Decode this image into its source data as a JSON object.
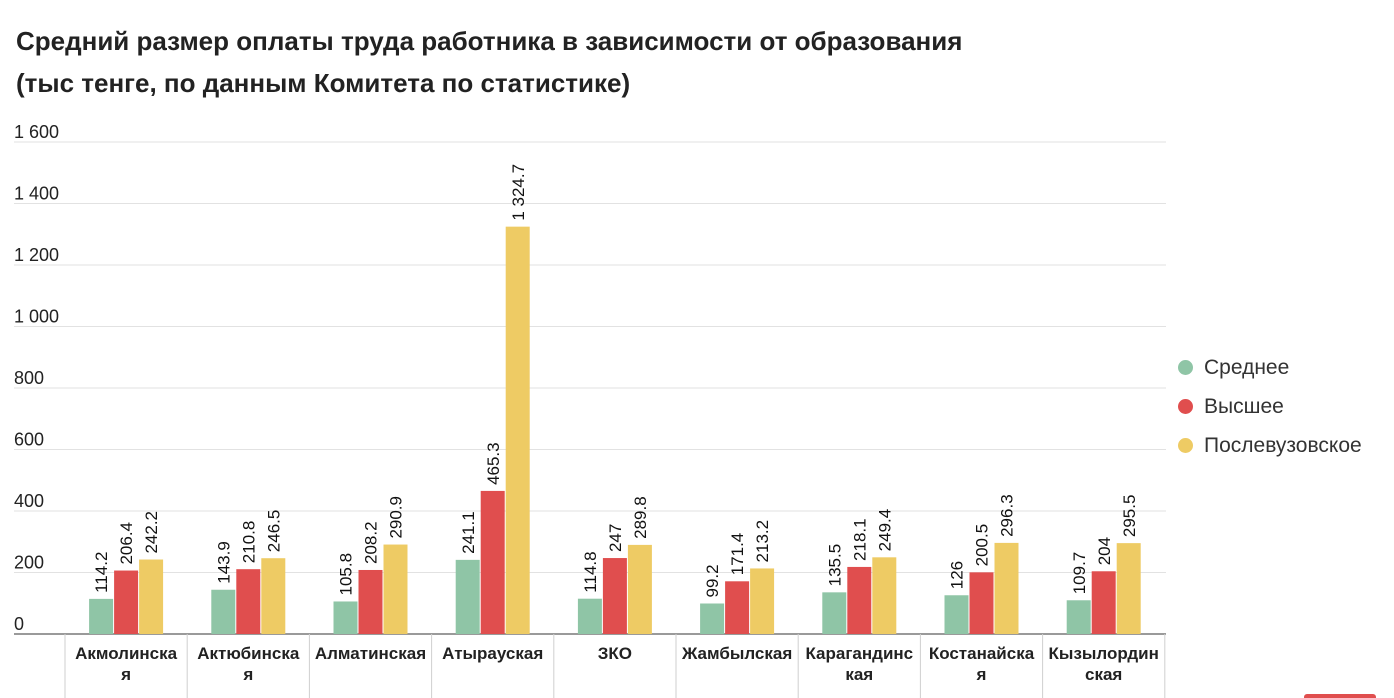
{
  "title": {
    "line1": "Средний размер оплаты труда работника в зависимости от образования",
    "line2": "(тыс тенге, по данным Комитета по статистике)"
  },
  "chart_data": {
    "type": "bar",
    "title": "Средний размер оплаты труда работника в зависимости от образования (тыс тенге, по данным Комитета по статистике)",
    "xlabel": "",
    "ylabel": "",
    "ylim": [
      0,
      1600
    ],
    "yticks": [
      0,
      200,
      400,
      600,
      800,
      1000,
      1200,
      1400,
      1600
    ],
    "ytick_labels": [
      "0",
      "200",
      "400",
      "600",
      "800",
      "1 000",
      "1 200",
      "1 400",
      "1 600"
    ],
    "grid": true,
    "legend_position": "right",
    "categories": [
      [
        "Акмолинска",
        "я"
      ],
      [
        "Актюбинска",
        "я"
      ],
      [
        "Алматинская"
      ],
      [
        "Атырауская"
      ],
      [
        "ЗКО"
      ],
      [
        "Жамбылская"
      ],
      [
        "Карагандинс",
        "кая"
      ],
      [
        "Костанайска",
        "я"
      ],
      [
        "Кызылордин",
        "ская"
      ]
    ],
    "series": [
      {
        "name": "Среднее",
        "color": "#8fc5a6",
        "values": [
          114.2,
          143.9,
          105.8,
          241.1,
          114.8,
          99.2,
          135.5,
          126,
          109.7
        ],
        "labels": [
          "114.2",
          "143.9",
          "105.8",
          "241.1",
          "114.8",
          "99.2",
          "135.5",
          "126",
          "109.7"
        ]
      },
      {
        "name": "Высшее",
        "color": "#e04e4e",
        "values": [
          206.4,
          210.8,
          208.2,
          465.3,
          247,
          171.4,
          218.1,
          200.5,
          204
        ],
        "labels": [
          "206.4",
          "210.8",
          "208.2",
          "465.3",
          "247",
          "171.4",
          "218.1",
          "200.5",
          "204"
        ]
      },
      {
        "name": "Послевузовское",
        "color": "#eecb64",
        "values": [
          242.2,
          246.5,
          290.9,
          1324.7,
          289.8,
          213.2,
          249.4,
          296.3,
          295.5
        ],
        "labels": [
          "242.2",
          "246.5",
          "290.9",
          "1 324.7",
          "289.8",
          "213.2",
          "249.4",
          "296.3",
          "295.5"
        ]
      }
    ]
  },
  "colors": {
    "gridline": "#e2e2e2",
    "axis": "#9a9a9a",
    "text": "#222222",
    "accent": "#e04e4e"
  }
}
